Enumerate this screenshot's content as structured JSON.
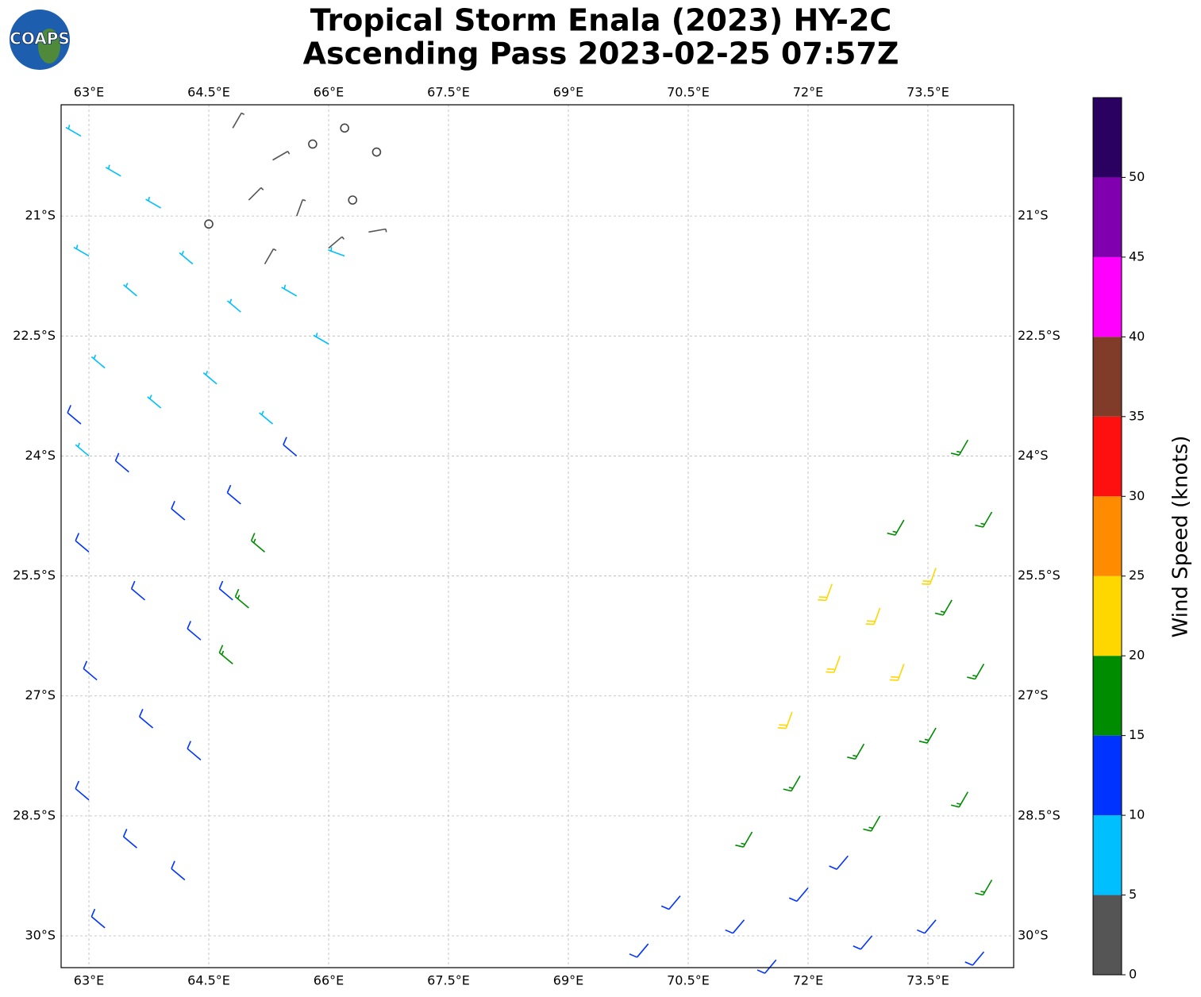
{
  "logo": "COAPS",
  "chart_data": {
    "type": "barb",
    "title": "Tropical Storm Enala (2023) HY-2C",
    "subtitle": "Ascending Pass 2023-02-25 07:57Z",
    "xlim": [
      62.652,
      74.573
    ],
    "ylim": [
      -30.397,
      -19.609
    ],
    "xticks": [
      {
        "value": 63,
        "label": "63°E"
      },
      {
        "value": 64.5,
        "label": "64.5°E"
      },
      {
        "value": 66,
        "label": "66°E"
      },
      {
        "value": 67.5,
        "label": "67.5°E"
      },
      {
        "value": 69,
        "label": "69°E"
      },
      {
        "value": 70.5,
        "label": "70.5°E"
      },
      {
        "value": 72,
        "label": "72°E"
      },
      {
        "value": 73.5,
        "label": "73.5°E"
      }
    ],
    "yticks": [
      {
        "value": -21,
        "label": "21°S"
      },
      {
        "value": -22.5,
        "label": "22.5°S"
      },
      {
        "value": -24,
        "label": "24°S"
      },
      {
        "value": -25.5,
        "label": "25.5°S"
      },
      {
        "value": -27,
        "label": "27°S"
      },
      {
        "value": -28.5,
        "label": "28.5°S"
      },
      {
        "value": -30,
        "label": "30°S"
      }
    ],
    "grid": true,
    "colorbar": {
      "label": "Wind Speed (knots)",
      "bounds": [
        0,
        5,
        10,
        15,
        20,
        25,
        30,
        35,
        40,
        45,
        50,
        55
      ],
      "colors": [
        "#555555",
        "#00bfff",
        "#0033ff",
        "#008c00",
        "#ffd700",
        "#ff8c00",
        "#ff1010",
        "#803c28",
        "#ff00ff",
        "#8000b0",
        "#2a0060"
      ],
      "ticks": [
        0,
        5,
        10,
        15,
        20,
        25,
        30,
        35,
        40,
        45,
        50
      ]
    },
    "barbs": [
      [
        64.8,
        -19.9,
        3,
        30
      ],
      [
        65.3,
        -20.3,
        2,
        60
      ],
      [
        65.8,
        -20.1,
        0,
        0
      ],
      [
        66.2,
        -19.9,
        0,
        0
      ],
      [
        66.6,
        -20.2,
        0,
        0
      ],
      [
        65.0,
        -20.8,
        3,
        45
      ],
      [
        65.6,
        -21.0,
        2,
        20
      ],
      [
        66.3,
        -20.8,
        0,
        0
      ],
      [
        64.5,
        -21.1,
        0,
        0
      ],
      [
        66.0,
        -21.4,
        3,
        50
      ],
      [
        66.5,
        -21.2,
        2,
        80
      ],
      [
        65.2,
        -21.6,
        3,
        30
      ],
      [
        62.9,
        -20.0,
        7,
        300
      ],
      [
        63.4,
        -20.5,
        7,
        300
      ],
      [
        63.9,
        -20.9,
        7,
        300
      ],
      [
        63.0,
        -21.5,
        7,
        300
      ],
      [
        63.6,
        -22.0,
        7,
        310
      ],
      [
        64.3,
        -21.6,
        8,
        310
      ],
      [
        64.9,
        -22.2,
        8,
        310
      ],
      [
        65.6,
        -22.0,
        8,
        300
      ],
      [
        66.0,
        -22.6,
        8,
        300
      ],
      [
        63.2,
        -22.9,
        8,
        310
      ],
      [
        63.9,
        -23.4,
        8,
        310
      ],
      [
        64.6,
        -23.1,
        9,
        310
      ],
      [
        65.3,
        -23.6,
        9,
        310
      ],
      [
        63.0,
        -24.0,
        8,
        310
      ],
      [
        66.2,
        -21.5,
        7,
        290
      ],
      [
        62.9,
        -23.6,
        12,
        310
      ],
      [
        63.5,
        -24.2,
        12,
        310
      ],
      [
        64.2,
        -24.8,
        12,
        310
      ],
      [
        64.9,
        -24.6,
        12,
        310
      ],
      [
        65.6,
        -24.0,
        11,
        310
      ],
      [
        63.0,
        -25.2,
        13,
        310
      ],
      [
        63.7,
        -25.8,
        13,
        310
      ],
      [
        64.4,
        -26.3,
        12,
        310
      ],
      [
        63.1,
        -26.8,
        12,
        310
      ],
      [
        63.8,
        -27.4,
        12,
        310
      ],
      [
        64.4,
        -27.8,
        13,
        310
      ],
      [
        63.0,
        -28.3,
        12,
        310
      ],
      [
        63.6,
        -28.9,
        13,
        310
      ],
      [
        64.2,
        -29.3,
        12,
        310
      ],
      [
        63.2,
        -29.9,
        12,
        310
      ],
      [
        64.8,
        -25.8,
        12,
        310
      ],
      [
        65.2,
        -25.2,
        16,
        310
      ],
      [
        65.0,
        -25.9,
        16,
        310
      ],
      [
        64.8,
        -26.6,
        17,
        310
      ],
      [
        72.3,
        -25.6,
        22,
        200
      ],
      [
        72.9,
        -25.9,
        22,
        200
      ],
      [
        72.4,
        -26.5,
        23,
        200
      ],
      [
        73.2,
        -26.6,
        22,
        200
      ],
      [
        71.8,
        -27.2,
        21,
        200
      ],
      [
        73.6,
        -25.4,
        21,
        200
      ],
      [
        73.2,
        -24.8,
        17,
        210
      ],
      [
        74.0,
        -23.8,
        17,
        210
      ],
      [
        74.3,
        -24.7,
        18,
        210
      ],
      [
        73.8,
        -25.8,
        18,
        210
      ],
      [
        74.2,
        -26.6,
        18,
        210
      ],
      [
        73.6,
        -27.4,
        17,
        210
      ],
      [
        72.7,
        -27.6,
        17,
        210
      ],
      [
        71.9,
        -28.0,
        16,
        210
      ],
      [
        72.9,
        -28.5,
        16,
        210
      ],
      [
        74.0,
        -28.2,
        17,
        210
      ],
      [
        71.3,
        -28.7,
        16,
        210
      ],
      [
        74.3,
        -29.3,
        17,
        210
      ],
      [
        70.4,
        -29.5,
        13,
        220
      ],
      [
        71.2,
        -29.8,
        13,
        220
      ],
      [
        72.0,
        -29.4,
        14,
        220
      ],
      [
        72.8,
        -30.0,
        13,
        220
      ],
      [
        73.6,
        -29.8,
        14,
        220
      ],
      [
        74.2,
        -30.2,
        13,
        220
      ],
      [
        70.0,
        -30.1,
        12,
        220
      ],
      [
        71.6,
        -30.3,
        13,
        220
      ],
      [
        72.5,
        -29.0,
        14,
        220
      ]
    ]
  }
}
